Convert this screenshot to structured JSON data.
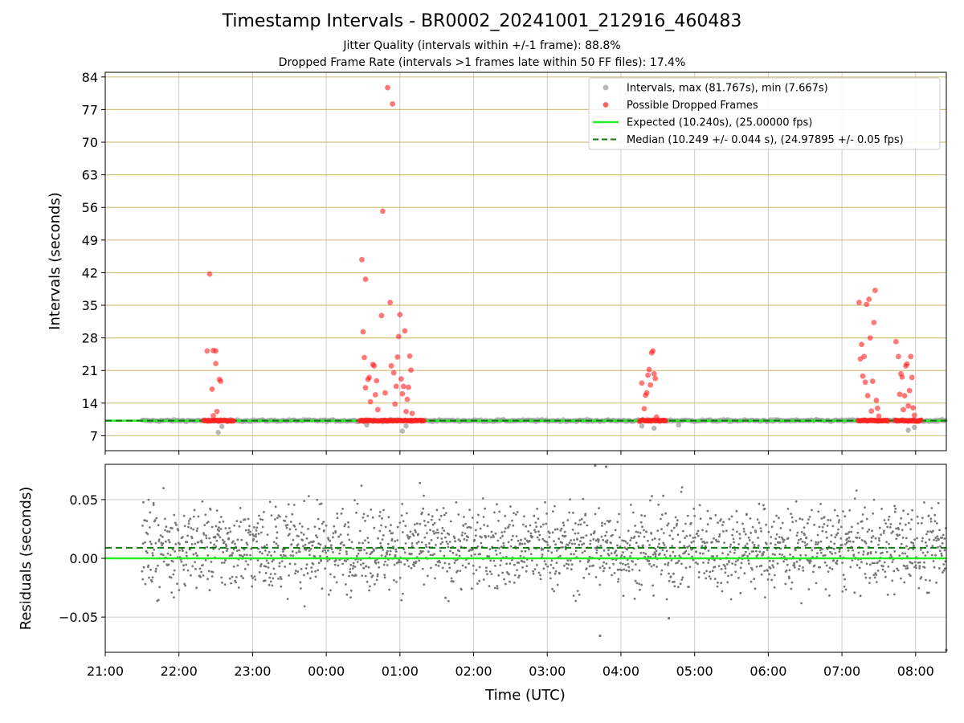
{
  "title": "Timestamp Intervals - BR0002_20241001_212916_460483",
  "subtitle_1": "Jitter Quality (intervals within +/-1 frame): 88.8%",
  "subtitle_2": "Dropped Frame Rate (intervals >1 frames late within 50 FF files): 17.4%",
  "colors": {
    "intervals": "#999999",
    "dropped": "#ff2020",
    "expected": "#22ee22",
    "median": "#117711",
    "hgrid": "#d2c183",
    "vgrid": "#cccccc",
    "residuals": "#777777"
  },
  "chart_data": [
    {
      "type": "scatter",
      "panel": "top",
      "ylabel": "Intervals (seconds)",
      "ylim": [
        3.8,
        85
      ],
      "yticks": [
        7,
        14,
        21,
        28,
        35,
        42,
        49,
        56,
        63,
        70,
        77,
        84
      ],
      "xlim": [
        "21:00",
        "08:25"
      ],
      "xticks": [
        "21:00",
        "22:00",
        "23:00",
        "00:00",
        "01:00",
        "02:00",
        "03:00",
        "04:00",
        "05:00",
        "06:00",
        "07:00",
        "08:00"
      ],
      "grid": true,
      "legend_position": "top-right",
      "legend": [
        {
          "label": "Intervals, max (81.767s), min (7.667s)",
          "kind": "marker",
          "color": "#999999"
        },
        {
          "label": "Possible Dropped Frames",
          "kind": "marker",
          "color": "#ff2020"
        },
        {
          "label": "Expected (10.240s), (25.00000 fps)",
          "kind": "line",
          "color": "#22ee22"
        },
        {
          "label": "Median (10.249 +/- 0.044 s), (24.97895 +/- 0.05 fps)",
          "kind": "dashed",
          "color": "#117711"
        }
      ],
      "expected": 10.24,
      "median": 10.249,
      "intervals_range": [
        "21:30",
        "08:25"
      ],
      "intervals_low_outliers": [
        {
          "x": "22:32",
          "y": 7.7
        },
        {
          "x": "22:35",
          "y": 9.0
        },
        {
          "x": "00:33",
          "y": 9.3
        },
        {
          "x": "01:02",
          "y": 8.0
        },
        {
          "x": "01:05",
          "y": 9.1
        },
        {
          "x": "04:17",
          "y": 9.1
        },
        {
          "x": "04:27",
          "y": 8.6
        },
        {
          "x": "04:47",
          "y": 9.3
        },
        {
          "x": "07:54",
          "y": 8.2
        },
        {
          "x": "07:59",
          "y": 8.8
        }
      ],
      "dropped_frames": [
        {
          "x": "22:23",
          "y": 25.2
        },
        {
          "x": "22:25",
          "y": 41.7
        },
        {
          "x": "22:27",
          "y": 17.0
        },
        {
          "x": "22:28",
          "y": 25.3
        },
        {
          "x": "22:30",
          "y": 25.2
        },
        {
          "x": "22:30",
          "y": 22.5
        },
        {
          "x": "22:33",
          "y": 19.1
        },
        {
          "x": "22:34",
          "y": 18.7
        },
        {
          "x": "22:28",
          "y": 11.3
        },
        {
          "x": "22:31",
          "y": 12.2
        },
        {
          "x": "00:29",
          "y": 44.8
        },
        {
          "x": "00:30",
          "y": 29.3
        },
        {
          "x": "00:31",
          "y": 23.8
        },
        {
          "x": "00:32",
          "y": 40.6
        },
        {
          "x": "00:32",
          "y": 17.3
        },
        {
          "x": "00:34",
          "y": 19.1
        },
        {
          "x": "00:35",
          "y": 19.5
        },
        {
          "x": "00:36",
          "y": 14.3
        },
        {
          "x": "00:38",
          "y": 22.3
        },
        {
          "x": "00:39",
          "y": 22.0
        },
        {
          "x": "00:40",
          "y": 15.8
        },
        {
          "x": "00:41",
          "y": 18.8
        },
        {
          "x": "00:42",
          "y": 12.6
        },
        {
          "x": "00:45",
          "y": 32.8
        },
        {
          "x": "00:46",
          "y": 55.2
        },
        {
          "x": "00:48",
          "y": 16.2
        },
        {
          "x": "00:50",
          "y": 81.7
        },
        {
          "x": "00:52",
          "y": 35.6
        },
        {
          "x": "00:53",
          "y": 22.0
        },
        {
          "x": "00:54",
          "y": 78.2
        },
        {
          "x": "00:55",
          "y": 20.5
        },
        {
          "x": "00:56",
          "y": 13.8
        },
        {
          "x": "00:57",
          "y": 17.6
        },
        {
          "x": "00:58",
          "y": 23.9
        },
        {
          "x": "00:59",
          "y": 28.3
        },
        {
          "x": "01:00",
          "y": 33.0
        },
        {
          "x": "01:01",
          "y": 19.2
        },
        {
          "x": "01:02",
          "y": 16.0
        },
        {
          "x": "01:03",
          "y": 17.6
        },
        {
          "x": "01:04",
          "y": 29.5
        },
        {
          "x": "01:05",
          "y": 12.2
        },
        {
          "x": "01:06",
          "y": 14.8
        },
        {
          "x": "01:07",
          "y": 17.4
        },
        {
          "x": "01:08",
          "y": 24.1
        },
        {
          "x": "01:09",
          "y": 21.1
        },
        {
          "x": "01:10",
          "y": 11.8
        },
        {
          "x": "04:17",
          "y": 18.3
        },
        {
          "x": "04:19",
          "y": 12.8
        },
        {
          "x": "04:20",
          "y": 15.7
        },
        {
          "x": "04:21",
          "y": 16.2
        },
        {
          "x": "04:22",
          "y": 20.0
        },
        {
          "x": "04:23",
          "y": 21.2
        },
        {
          "x": "04:24",
          "y": 17.9
        },
        {
          "x": "04:25",
          "y": 24.8
        },
        {
          "x": "04:26",
          "y": 25.2
        },
        {
          "x": "04:27",
          "y": 20.3
        },
        {
          "x": "04:28",
          "y": 19.3
        },
        {
          "x": "04:29",
          "y": 11.0
        },
        {
          "x": "07:14",
          "y": 35.6
        },
        {
          "x": "07:15",
          "y": 23.5
        },
        {
          "x": "07:16",
          "y": 26.6
        },
        {
          "x": "07:17",
          "y": 19.8
        },
        {
          "x": "07:18",
          "y": 24.0
        },
        {
          "x": "07:19",
          "y": 18.5
        },
        {
          "x": "07:20",
          "y": 35.2
        },
        {
          "x": "07:21",
          "y": 15.6
        },
        {
          "x": "07:22",
          "y": 36.3
        },
        {
          "x": "07:23",
          "y": 28.0
        },
        {
          "x": "07:24",
          "y": 12.3
        },
        {
          "x": "07:25",
          "y": 18.7
        },
        {
          "x": "07:26",
          "y": 31.3
        },
        {
          "x": "07:27",
          "y": 38.2
        },
        {
          "x": "07:28",
          "y": 14.6
        },
        {
          "x": "07:29",
          "y": 12.9
        },
        {
          "x": "07:30",
          "y": 11.2
        },
        {
          "x": "07:44",
          "y": 27.2
        },
        {
          "x": "07:46",
          "y": 24.0
        },
        {
          "x": "07:47",
          "y": 15.9
        },
        {
          "x": "07:48",
          "y": 20.3
        },
        {
          "x": "07:49",
          "y": 19.6
        },
        {
          "x": "07:50",
          "y": 12.6
        },
        {
          "x": "07:51",
          "y": 15.6
        },
        {
          "x": "07:52",
          "y": 22.0
        },
        {
          "x": "07:53",
          "y": 22.4
        },
        {
          "x": "07:54",
          "y": 13.4
        },
        {
          "x": "07:55",
          "y": 16.7
        },
        {
          "x": "07:56",
          "y": 24.0
        },
        {
          "x": "07:57",
          "y": 19.5
        },
        {
          "x": "07:58",
          "y": 13.0
        },
        {
          "x": "07:59",
          "y": 11.4
        }
      ],
      "dropped_frame_clusters": [
        {
          "from": "22:20",
          "to": "22:45"
        },
        {
          "from": "00:27",
          "to": "01:20"
        },
        {
          "from": "04:15",
          "to": "04:37"
        },
        {
          "from": "07:13",
          "to": "07:38"
        },
        {
          "from": "07:43",
          "to": "08:05"
        }
      ]
    },
    {
      "type": "scatter",
      "panel": "bottom",
      "ylabel": "Residuals (seconds)",
      "xlabel": "Time (UTC)",
      "ylim": [
        -0.08,
        0.08
      ],
      "yticks": [
        "−0.05",
        "0.00",
        "0.05"
      ],
      "xlim": [
        "21:00",
        "08:25"
      ],
      "xticks": [
        "21:00",
        "22:00",
        "23:00",
        "00:00",
        "01:00",
        "02:00",
        "03:00",
        "04:00",
        "05:00",
        "06:00",
        "07:00",
        "08:00"
      ],
      "grid": true,
      "expected_line": 0.0,
      "median_line": 0.009,
      "residual_range": [
        "21:30",
        "08:25"
      ],
      "residual_spread": "approx. -0.05 to 0.06 s",
      "notable_points": [
        {
          "x": "03:43",
          "y": -0.066
        },
        {
          "x": "03:48",
          "y": 0.078
        },
        {
          "x": "03:39",
          "y": 0.079
        },
        {
          "x": "08:25",
          "y": -0.078
        },
        {
          "x": "04:39",
          "y": -0.051
        }
      ]
    }
  ]
}
